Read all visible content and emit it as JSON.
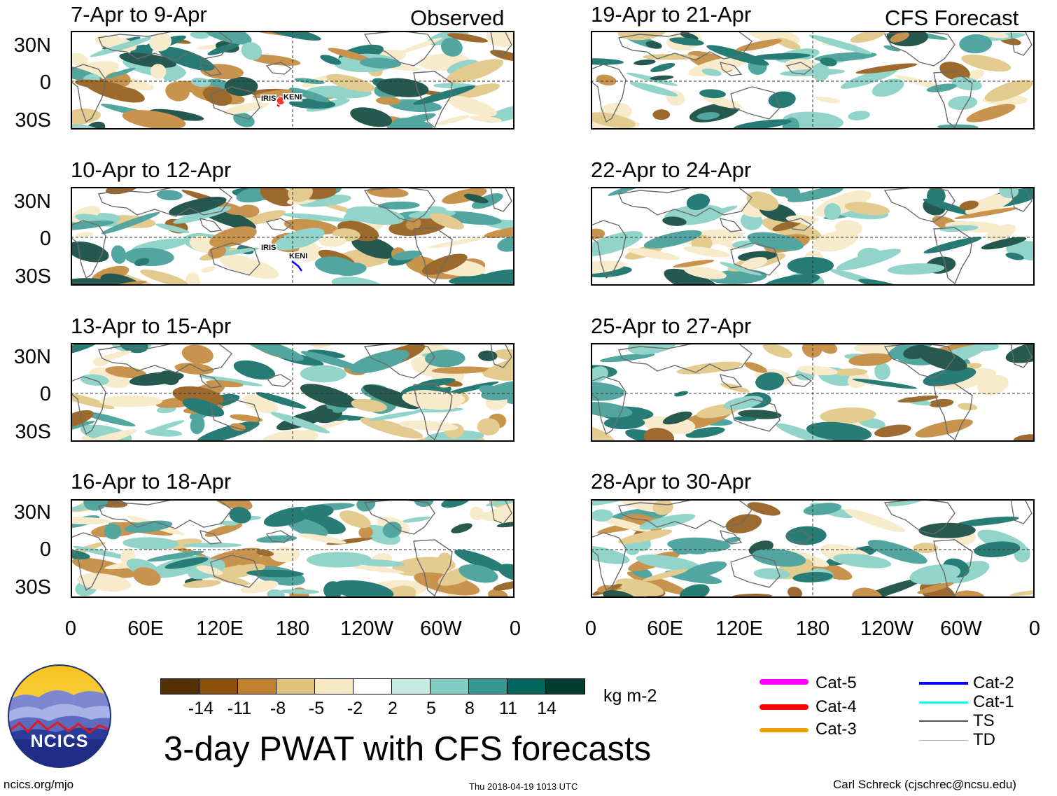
{
  "headers": {
    "left": "Observed",
    "right": "CFS Forecast"
  },
  "panels": [
    {
      "title": "7-Apr to 9-Apr",
      "storms": [
        "IRIS",
        "KENI"
      ]
    },
    {
      "title": "10-Apr to 12-Apr",
      "storms": [
        "IRIS",
        "KENI"
      ]
    },
    {
      "title": "13-Apr to 15-Apr",
      "storms": []
    },
    {
      "title": "16-Apr to 18-Apr",
      "storms": []
    },
    {
      "title": "19-Apr to 21-Apr",
      "storms": []
    },
    {
      "title": "22-Apr to 24-Apr",
      "storms": []
    },
    {
      "title": "25-Apr to 27-Apr",
      "storms": []
    },
    {
      "title": "28-Apr to 30-Apr",
      "storms": []
    }
  ],
  "lat_labels": [
    "30N",
    "0",
    "30S"
  ],
  "lon_labels": [
    "0",
    "60E",
    "120E",
    "180",
    "120W",
    "60W",
    "0"
  ],
  "colorbar": {
    "unit": "kg m-2",
    "ticks": [
      "-14",
      "-11",
      "-8",
      "-5",
      "-2",
      "2",
      "5",
      "8",
      "11",
      "14"
    ],
    "colors": [
      "#543005",
      "#8c510a",
      "#bf812d",
      "#dfc27d",
      "#f6e8c3",
      "#ffffff",
      "#c7eae5",
      "#80cdc1",
      "#35978f",
      "#01665e",
      "#003c30"
    ]
  },
  "legend": [
    {
      "label": "Cat-5",
      "color": "#ff00ff"
    },
    {
      "label": "Cat-4",
      "color": "#ff0000"
    },
    {
      "label": "Cat-3",
      "color": "#f0a000"
    },
    {
      "label": "Cat-2",
      "color": "#0000ff"
    },
    {
      "label": "Cat-1",
      "color": "#00ffff"
    },
    {
      "label": "TS",
      "color": "#555555"
    },
    {
      "label": "TD",
      "color": "#aaaaaa"
    }
  ],
  "logo": {
    "text": "NCICS"
  },
  "main_title": "3-day PWAT with CFS forecasts",
  "footer": {
    "left": "ncics.org/mjo",
    "center": "Thu 2018-04-19 1013 UTC",
    "right": "Carl Schreck (cjschrec@ncsu.edu)"
  }
}
